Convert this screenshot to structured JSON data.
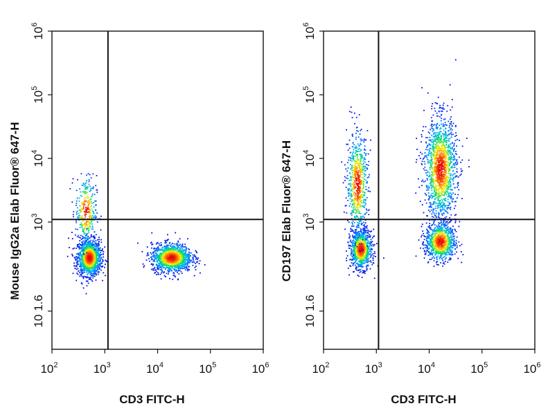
{
  "chart_data": [
    {
      "type": "scatter",
      "xlabel": "CD3 FITC-H",
      "ylabel": "Mouse IgG2a Elab Fluor® 647-H",
      "x_scale": "log",
      "y_scale": "log",
      "xlim": [
        100,
        1000000
      ],
      "ylim": [
        10,
        1000000
      ],
      "x_ticks": [
        {
          "base": "10",
          "exp": "2"
        },
        {
          "base": "10",
          "exp": "3"
        },
        {
          "base": "10",
          "exp": "4"
        },
        {
          "base": "10",
          "exp": "5"
        },
        {
          "base": "10",
          "exp": "6"
        }
      ],
      "y_ticks": [
        {
          "base": "10",
          "exp": "1.6"
        },
        {
          "base": "10",
          "exp": "3"
        },
        {
          "base": "10",
          "exp": "4"
        },
        {
          "base": "10",
          "exp": "5"
        },
        {
          "base": "10",
          "exp": "6"
        }
      ],
      "quadrant_gate": {
        "x": 1150,
        "y": 1100
      },
      "populations": [
        {
          "x": 500,
          "y": 280,
          "spread_x": 0.11,
          "spread_y": 0.14,
          "count": 1400
        },
        {
          "x": 430,
          "y": 1500,
          "spread_x": 0.1,
          "spread_y": 0.28,
          "count": 320
        },
        {
          "x": 18000,
          "y": 280,
          "spread_x": 0.19,
          "spread_y": 0.11,
          "count": 1300
        }
      ]
    },
    {
      "type": "scatter",
      "xlabel": "CD3 FITC-H",
      "ylabel": "CD197 Elab Fluor® 647-H",
      "x_scale": "log",
      "y_scale": "log",
      "xlim": [
        100,
        1000000
      ],
      "ylim": [
        10,
        1000000
      ],
      "x_ticks": [
        {
          "base": "10",
          "exp": "2"
        },
        {
          "base": "10",
          "exp": "3"
        },
        {
          "base": "10",
          "exp": "4"
        },
        {
          "base": "10",
          "exp": "5"
        },
        {
          "base": "10",
          "exp": "6"
        }
      ],
      "y_ticks": [
        {
          "base": "10",
          "exp": "1.6"
        },
        {
          "base": "10",
          "exp": "3"
        },
        {
          "base": "10",
          "exp": "4"
        },
        {
          "base": "10",
          "exp": "5"
        },
        {
          "base": "10",
          "exp": "6"
        }
      ],
      "quadrant_gate": {
        "x": 1100,
        "y": 1100
      },
      "populations": [
        {
          "x": 500,
          "y": 380,
          "spread_x": 0.1,
          "spread_y": 0.15,
          "count": 900
        },
        {
          "x": 430,
          "y": 4000,
          "spread_x": 0.1,
          "spread_y": 0.4,
          "count": 700
        },
        {
          "x": 16000,
          "y": 7000,
          "spread_x": 0.15,
          "spread_y": 0.4,
          "count": 1500
        },
        {
          "x": 16000,
          "y": 500,
          "spread_x": 0.14,
          "spread_y": 0.15,
          "count": 900
        }
      ]
    }
  ]
}
